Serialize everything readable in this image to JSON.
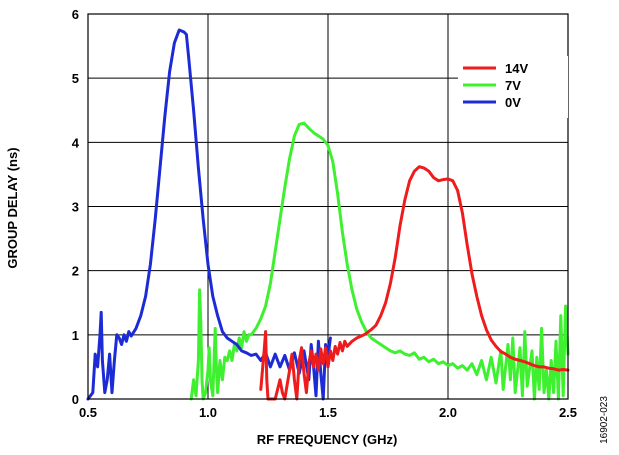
{
  "chart_data": {
    "type": "line",
    "title": "",
    "xlabel": "RF FREQUENCY (GHz)",
    "ylabel": "GROUP DELAY (ns)",
    "xlim": [
      0.5,
      2.5
    ],
    "ylim": [
      0,
      6
    ],
    "x_ticks": [
      "0.5",
      "1.0",
      "1.5",
      "2.0",
      "2.5"
    ],
    "y_ticks": [
      "0",
      "1",
      "2",
      "3",
      "4",
      "5",
      "6"
    ],
    "grid": true,
    "legend_position": "top-right",
    "figure_id": "16902-023",
    "series": [
      {
        "name": "14V",
        "color": "#ee1c1c",
        "points": [
          [
            1.22,
            0.15
          ],
          [
            1.235,
            0.8
          ],
          [
            1.24,
            1.05
          ],
          [
            1.245,
            0.3
          ],
          [
            1.25,
            0.0
          ],
          [
            1.28,
            0.0
          ],
          [
            1.3,
            0.3
          ],
          [
            1.31,
            0.1
          ],
          [
            1.32,
            0.0
          ],
          [
            1.34,
            0.45
          ],
          [
            1.35,
            0.7
          ],
          [
            1.36,
            0.3
          ],
          [
            1.37,
            0.0
          ],
          [
            1.38,
            0.6
          ],
          [
            1.39,
            0.8
          ],
          [
            1.4,
            0.4
          ],
          [
            1.41,
            0.1
          ],
          [
            1.42,
            0.55
          ],
          [
            1.43,
            0.75
          ],
          [
            1.44,
            0.5
          ],
          [
            1.45,
            0.7
          ],
          [
            1.46,
            0.45
          ],
          [
            1.47,
            0.78
          ],
          [
            1.48,
            0.55
          ],
          [
            1.49,
            0.8
          ],
          [
            1.5,
            0.5
          ],
          [
            1.51,
            0.75
          ],
          [
            1.52,
            0.6
          ],
          [
            1.53,
            0.82
          ],
          [
            1.54,
            0.7
          ],
          [
            1.55,
            0.88
          ],
          [
            1.56,
            0.75
          ],
          [
            1.57,
            0.9
          ],
          [
            1.58,
            0.82
          ],
          [
            1.6,
            0.9
          ],
          [
            1.62,
            0.95
          ],
          [
            1.65,
            1.0
          ],
          [
            1.68,
            1.08
          ],
          [
            1.7,
            1.15
          ],
          [
            1.72,
            1.3
          ],
          [
            1.74,
            1.5
          ],
          [
            1.76,
            1.8
          ],
          [
            1.78,
            2.2
          ],
          [
            1.8,
            2.7
          ],
          [
            1.82,
            3.1
          ],
          [
            1.84,
            3.4
          ],
          [
            1.86,
            3.55
          ],
          [
            1.88,
            3.62
          ],
          [
            1.9,
            3.6
          ],
          [
            1.92,
            3.55
          ],
          [
            1.94,
            3.45
          ],
          [
            1.96,
            3.4
          ],
          [
            1.98,
            3.42
          ],
          [
            2.0,
            3.43
          ],
          [
            2.02,
            3.4
          ],
          [
            2.04,
            3.25
          ],
          [
            2.06,
            2.9
          ],
          [
            2.08,
            2.4
          ],
          [
            2.1,
            1.95
          ],
          [
            2.12,
            1.6
          ],
          [
            2.14,
            1.3
          ],
          [
            2.16,
            1.08
          ],
          [
            2.18,
            0.92
          ],
          [
            2.2,
            0.82
          ],
          [
            2.22,
            0.74
          ],
          [
            2.24,
            0.7
          ],
          [
            2.26,
            0.65
          ],
          [
            2.28,
            0.62
          ],
          [
            2.3,
            0.6
          ],
          [
            2.32,
            0.58
          ],
          [
            2.34,
            0.55
          ],
          [
            2.36,
            0.52
          ],
          [
            2.38,
            0.5
          ],
          [
            2.4,
            0.5
          ],
          [
            2.42,
            0.48
          ],
          [
            2.44,
            0.47
          ],
          [
            2.46,
            0.45
          ],
          [
            2.48,
            0.46
          ],
          [
            2.5,
            0.45
          ]
        ]
      },
      {
        "name": "7V",
        "color": "#3ef030",
        "points": [
          [
            0.93,
            0.0
          ],
          [
            0.94,
            0.3
          ],
          [
            0.95,
            0.05
          ],
          [
            0.96,
            0.6
          ],
          [
            0.965,
            1.7
          ],
          [
            0.97,
            1.2
          ],
          [
            0.975,
            0.3
          ],
          [
            0.98,
            0.0
          ],
          [
            0.99,
            0.1
          ],
          [
            1.0,
            0.45
          ],
          [
            1.005,
            0.8
          ],
          [
            1.01,
            0.3
          ],
          [
            1.02,
            0.05
          ],
          [
            1.03,
            1.1
          ],
          [
            1.035,
            0.5
          ],
          [
            1.04,
            0.1
          ],
          [
            1.05,
            0.6
          ],
          [
            1.06,
            0.3
          ],
          [
            1.07,
            0.65
          ],
          [
            1.08,
            0.6
          ],
          [
            1.09,
            0.75
          ],
          [
            1.1,
            0.6
          ],
          [
            1.11,
            0.85
          ],
          [
            1.12,
            0.75
          ],
          [
            1.13,
            0.95
          ],
          [
            1.14,
            0.8
          ],
          [
            1.15,
            1.05
          ],
          [
            1.16,
            0.9
          ],
          [
            1.17,
            1.0
          ],
          [
            1.18,
            1.0
          ],
          [
            1.2,
            1.1
          ],
          [
            1.22,
            1.25
          ],
          [
            1.24,
            1.45
          ],
          [
            1.26,
            1.8
          ],
          [
            1.28,
            2.3
          ],
          [
            1.3,
            2.8
          ],
          [
            1.32,
            3.3
          ],
          [
            1.34,
            3.75
          ],
          [
            1.36,
            4.1
          ],
          [
            1.38,
            4.28
          ],
          [
            1.4,
            4.3
          ],
          [
            1.42,
            4.22
          ],
          [
            1.44,
            4.15
          ],
          [
            1.46,
            4.1
          ],
          [
            1.48,
            4.05
          ],
          [
            1.5,
            3.95
          ],
          [
            1.52,
            3.7
          ],
          [
            1.54,
            3.2
          ],
          [
            1.56,
            2.6
          ],
          [
            1.58,
            2.1
          ],
          [
            1.6,
            1.7
          ],
          [
            1.62,
            1.4
          ],
          [
            1.64,
            1.2
          ],
          [
            1.66,
            1.05
          ],
          [
            1.68,
            0.95
          ],
          [
            1.7,
            0.9
          ],
          [
            1.72,
            0.85
          ],
          [
            1.74,
            0.8
          ],
          [
            1.76,
            0.75
          ],
          [
            1.78,
            0.72
          ],
          [
            1.8,
            0.75
          ],
          [
            1.82,
            0.7
          ],
          [
            1.84,
            0.68
          ],
          [
            1.86,
            0.72
          ],
          [
            1.88,
            0.62
          ],
          [
            1.9,
            0.65
          ],
          [
            1.92,
            0.58
          ],
          [
            1.94,
            0.62
          ],
          [
            1.96,
            0.55
          ],
          [
            1.98,
            0.58
          ],
          [
            2.0,
            0.52
          ],
          [
            2.02,
            0.55
          ],
          [
            2.04,
            0.48
          ],
          [
            2.06,
            0.52
          ],
          [
            2.08,
            0.45
          ],
          [
            2.1,
            0.55
          ],
          [
            2.12,
            0.38
          ],
          [
            2.14,
            0.6
          ],
          [
            2.16,
            0.3
          ],
          [
            2.18,
            0.65
          ],
          [
            2.2,
            0.25
          ],
          [
            2.22,
            0.75
          ],
          [
            2.23,
            0.15
          ],
          [
            2.25,
            0.85
          ],
          [
            2.26,
            0.3
          ],
          [
            2.27,
            0.95
          ],
          [
            2.28,
            0.1
          ],
          [
            2.3,
            0.8
          ],
          [
            2.31,
            0.05
          ],
          [
            2.32,
            1.05
          ],
          [
            2.33,
            0.2
          ],
          [
            2.35,
            0.75
          ],
          [
            2.36,
            0.0
          ],
          [
            2.37,
            0.65
          ],
          [
            2.38,
            0.15
          ],
          [
            2.39,
            1.1
          ],
          [
            2.4,
            0.1
          ],
          [
            2.41,
            0.45
          ],
          [
            2.42,
            0.0
          ],
          [
            2.43,
            0.6
          ],
          [
            2.44,
            0.1
          ],
          [
            2.45,
            0.9
          ],
          [
            2.46,
            0.0
          ],
          [
            2.47,
            1.3
          ],
          [
            2.48,
            0.05
          ],
          [
            2.49,
            1.45
          ],
          [
            2.5,
            0.7
          ]
        ]
      },
      {
        "name": "0V",
        "color": "#1c2bd6",
        "points": [
          [
            0.5,
            0.0
          ],
          [
            0.52,
            0.1
          ],
          [
            0.53,
            0.7
          ],
          [
            0.54,
            0.5
          ],
          [
            0.55,
            1.0
          ],
          [
            0.555,
            1.35
          ],
          [
            0.56,
            0.6
          ],
          [
            0.57,
            0.1
          ],
          [
            0.58,
            0.3
          ],
          [
            0.59,
            0.7
          ],
          [
            0.6,
            0.1
          ],
          [
            0.61,
            0.6
          ],
          [
            0.62,
            1.0
          ],
          [
            0.63,
            0.95
          ],
          [
            0.64,
            0.85
          ],
          [
            0.65,
            1.0
          ],
          [
            0.66,
            0.9
          ],
          [
            0.67,
            1.05
          ],
          [
            0.68,
            0.98
          ],
          [
            0.7,
            1.1
          ],
          [
            0.72,
            1.3
          ],
          [
            0.74,
            1.6
          ],
          [
            0.76,
            2.1
          ],
          [
            0.78,
            2.8
          ],
          [
            0.8,
            3.6
          ],
          [
            0.82,
            4.4
          ],
          [
            0.84,
            5.1
          ],
          [
            0.86,
            5.55
          ],
          [
            0.88,
            5.75
          ],
          [
            0.9,
            5.72
          ],
          [
            0.91,
            5.68
          ],
          [
            0.92,
            5.3
          ],
          [
            0.94,
            4.5
          ],
          [
            0.96,
            3.6
          ],
          [
            0.98,
            2.8
          ],
          [
            1.0,
            2.1
          ],
          [
            1.02,
            1.6
          ],
          [
            1.04,
            1.3
          ],
          [
            1.06,
            1.05
          ],
          [
            1.08,
            0.95
          ],
          [
            1.1,
            0.9
          ],
          [
            1.12,
            0.85
          ],
          [
            1.14,
            0.75
          ],
          [
            1.16,
            0.72
          ],
          [
            1.18,
            0.68
          ],
          [
            1.2,
            0.7
          ],
          [
            1.22,
            0.6
          ],
          [
            1.24,
            0.72
          ],
          [
            1.26,
            0.5
          ],
          [
            1.28,
            0.7
          ],
          [
            1.3,
            0.5
          ],
          [
            1.32,
            0.68
          ],
          [
            1.34,
            0.45
          ],
          [
            1.36,
            0.72
          ],
          [
            1.38,
            0.4
          ],
          [
            1.4,
            0.75
          ],
          [
            1.42,
            0.3
          ],
          [
            1.43,
            0.85
          ],
          [
            1.44,
            0.5
          ],
          [
            1.45,
            0.05
          ],
          [
            1.46,
            0.9
          ],
          [
            1.47,
            0.4
          ],
          [
            1.48,
            0.0
          ],
          [
            1.49,
            0.85
          ],
          [
            1.5,
            0.65
          ],
          [
            1.51,
            0.95
          ]
        ]
      }
    ]
  }
}
